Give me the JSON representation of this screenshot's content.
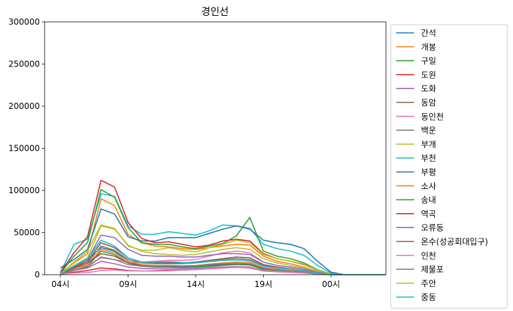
{
  "chart_data": {
    "type": "line",
    "title": "경인선",
    "xlabel": "",
    "ylabel": "",
    "x": [
      "04시",
      "05시",
      "06시",
      "07시",
      "08시",
      "09시",
      "10시",
      "11시",
      "12시",
      "13시",
      "14시",
      "15시",
      "16시",
      "17시",
      "18시",
      "19시",
      "20시",
      "21시",
      "22시",
      "23시",
      "00시",
      "01시",
      "02시",
      "03시",
      "04시"
    ],
    "xticks": [
      "04시",
      "09시",
      "14시",
      "19시",
      "00시"
    ],
    "ylim": [
      0,
      300000
    ],
    "yticks": [
      0,
      50000,
      100000,
      150000,
      200000,
      250000,
      300000
    ],
    "legend_position": "outside-right",
    "grid": false,
    "series": [
      {
        "name": "간석",
        "color": "#1f77b4",
        "values": [
          1500,
          10000,
          18000,
          32000,
          28000,
          16000,
          11000,
          10000,
          9500,
          9000,
          9500,
          10500,
          11500,
          12500,
          12000,
          7000,
          5000,
          4000,
          3000,
          1500,
          300,
          0,
          0,
          0,
          0
        ]
      },
      {
        "name": "개봉",
        "color": "#ff7f0e",
        "values": [
          2000,
          14000,
          25000,
          90000,
          82000,
          48000,
          38000,
          34000,
          33000,
          31000,
          30000,
          32000,
          34000,
          36000,
          35000,
          22000,
          16000,
          13000,
          9000,
          4000,
          800,
          0,
          0,
          0,
          0
        ]
      },
      {
        "name": "구일",
        "color": "#2ca02c",
        "values": [
          800,
          5000,
          10000,
          28000,
          24000,
          14000,
          10000,
          9000,
          9000,
          8500,
          9000,
          10000,
          11000,
          12000,
          11500,
          6000,
          4500,
          3500,
          2500,
          1200,
          200,
          0,
          0,
          0,
          0
        ]
      },
      {
        "name": "도원",
        "color": "#d62728",
        "values": [
          600,
          3000,
          5000,
          8000,
          7000,
          5000,
          4500,
          4500,
          5000,
          5500,
          6000,
          7000,
          8000,
          9000,
          8000,
          4500,
          3500,
          2800,
          2000,
          900,
          150,
          0,
          0,
          0,
          0
        ]
      },
      {
        "name": "도화",
        "color": "#9467bd",
        "values": [
          800,
          5000,
          8000,
          16000,
          13000,
          9000,
          7500,
          7000,
          7000,
          7000,
          7500,
          8500,
          9000,
          9500,
          9000,
          5000,
          4000,
          3200,
          2400,
          1100,
          200,
          0,
          0,
          0,
          0
        ]
      },
      {
        "name": "동암",
        "color": "#8c564b",
        "values": [
          1200,
          9000,
          16000,
          38000,
          32000,
          20000,
          15000,
          14000,
          14000,
          14000,
          15000,
          17000,
          19000,
          21000,
          20000,
          12000,
          9000,
          7000,
          5000,
          2500,
          500,
          0,
          0,
          0,
          0
        ]
      },
      {
        "name": "동인천",
        "color": "#e377c2",
        "values": [
          1500,
          7000,
          11000,
          20000,
          18000,
          15000,
          15000,
          16000,
          17000,
          17000,
          18000,
          22000,
          26000,
          28000,
          26000,
          15000,
          11000,
          9000,
          6500,
          3000,
          600,
          0,
          0,
          0,
          0
        ]
      },
      {
        "name": "백운",
        "color": "#7f7f7f",
        "values": [
          1000,
          8000,
          14000,
          34000,
          29000,
          18000,
          14000,
          13000,
          13000,
          13000,
          14000,
          16000,
          18000,
          19000,
          18000,
          11000,
          8000,
          6500,
          4800,
          2300,
          400,
          0,
          0,
          0,
          0
        ]
      },
      {
        "name": "부개",
        "color": "#bcbd22",
        "values": [
          1300,
          11000,
          20000,
          58000,
          54000,
          35000,
          28000,
          25000,
          24000,
          23000,
          24000,
          27000,
          30000,
          32000,
          30000,
          19000,
          14000,
          11000,
          8000,
          3800,
          700,
          0,
          0,
          0,
          0
        ]
      },
      {
        "name": "부천",
        "color": "#17becf",
        "values": [
          2500,
          36000,
          42000,
          96000,
          93000,
          58000,
          48000,
          48000,
          51000,
          49000,
          47000,
          52000,
          59000,
          58000,
          55000,
          36000,
          31000,
          28000,
          23000,
          11000,
          2000,
          0,
          0,
          0,
          0
        ]
      },
      {
        "name": "부평",
        "color": "#1f77b4",
        "values": [
          8000,
          18000,
          30000,
          78000,
          72000,
          45000,
          40000,
          40000,
          44000,
          44000,
          44000,
          49000,
          54000,
          58000,
          54000,
          41000,
          38000,
          36000,
          31000,
          16000,
          3000,
          0,
          0,
          0,
          0
        ]
      },
      {
        "name": "소사",
        "color": "#ff7f0e",
        "values": [
          900,
          7000,
          12000,
          30000,
          26000,
          16000,
          12000,
          11000,
          11000,
          10500,
          11000,
          12500,
          14000,
          15000,
          14500,
          8500,
          6500,
          5000,
          3600,
          1700,
          300,
          0,
          0,
          0,
          0
        ]
      },
      {
        "name": "송내",
        "color": "#2ca02c",
        "values": [
          1800,
          22000,
          38000,
          101000,
          92000,
          56000,
          38000,
          36000,
          36000,
          33000,
          31000,
          34000,
          37000,
          46000,
          68000,
          28000,
          22000,
          19000,
          14000,
          6000,
          1000,
          0,
          0,
          0,
          0
        ]
      },
      {
        "name": "역곡",
        "color": "#d62728",
        "values": [
          2500,
          26000,
          45000,
          112000,
          104000,
          62000,
          43000,
          38000,
          39000,
          36000,
          33000,
          35000,
          40000,
          42000,
          40000,
          25000,
          19000,
          16000,
          12000,
          5500,
          1000,
          0,
          0,
          0,
          0
        ]
      },
      {
        "name": "오류동",
        "color": "#9467bd",
        "values": [
          1200,
          10000,
          18000,
          47000,
          44000,
          30000,
          23000,
          22000,
          22000,
          21000,
          21000,
          23000,
          25000,
          25000,
          24000,
          15000,
          11000,
          9000,
          6500,
          3000,
          500,
          0,
          0,
          0,
          0
        ]
      },
      {
        "name": "온수(성공회대입구)",
        "color": "#8c564b",
        "values": [
          1000,
          8000,
          14000,
          25000,
          22000,
          14000,
          10500,
          10000,
          10000,
          10000,
          10500,
          11500,
          12500,
          13000,
          12500,
          7500,
          5500,
          4500,
          3200,
          1500,
          250,
          0,
          0,
          0,
          0
        ]
      },
      {
        "name": "인천",
        "color": "#e377c2",
        "values": [
          700,
          2000,
          2500,
          5000,
          5500,
          4500,
          4500,
          5000,
          5500,
          5800,
          6000,
          7000,
          8000,
          8500,
          8000,
          4800,
          3800,
          3000,
          2200,
          1000,
          200,
          0,
          0,
          0,
          0
        ]
      },
      {
        "name": "제물포",
        "color": "#7f7f7f",
        "values": [
          900,
          5500,
          9000,
          21000,
          18000,
          12000,
          10000,
          10000,
          10500,
          10000,
          10500,
          12000,
          13000,
          13500,
          13000,
          7500,
          5500,
          4500,
          3300,
          1500,
          250,
          0,
          0,
          0,
          0
        ]
      },
      {
        "name": "주안",
        "color": "#bcbd22",
        "values": [
          1400,
          15000,
          28000,
          59000,
          55000,
          34000,
          29000,
          29000,
          32000,
          29000,
          27000,
          32000,
          36000,
          41000,
          38000,
          24000,
          19000,
          16000,
          12500,
          5500,
          1000,
          0,
          0,
          0,
          0
        ]
      },
      {
        "name": "중동",
        "color": "#17becf",
        "values": [
          1100,
          10000,
          19000,
          41000,
          34000,
          20000,
          15000,
          15000,
          15500,
          14500,
          14000,
          15500,
          17000,
          17500,
          16500,
          10000,
          8000,
          6500,
          4600,
          2200,
          400,
          0,
          0,
          0,
          0
        ]
      }
    ]
  }
}
